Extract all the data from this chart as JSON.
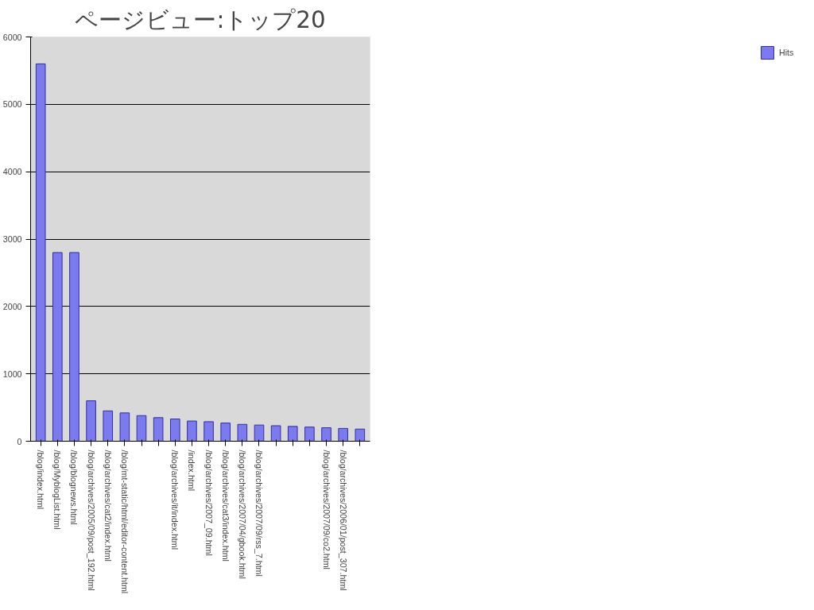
{
  "chart_data": {
    "type": "bar",
    "title": "ページビュー:トップ20",
    "categories": [
      "/blog/index.html",
      "/blog/MyblogList.html",
      "/blog/blognews.html",
      "/blog/archives/2005/09/post_192.html",
      "/blog/archives/cat2/index.html",
      "/blog/mt-static/html/editor-content.html",
      null,
      null,
      "/blog/archives/it/index.html",
      "/index.html",
      "/blog/archives/2007_09.html",
      "/blog/archives/cat3/index.html",
      "/blog/archives/2007/04/gbook.html",
      "/blog/archives/2007/09/rss_7.html",
      null,
      null,
      null,
      "/blog/archives/2007/09/co2.html",
      "/blog/archives/2006/01/post_307.html",
      null
    ],
    "series": [
      {
        "name": "Hits",
        "color": "#7b7bef",
        "values": [
          5600,
          2800,
          2800,
          600,
          450,
          420,
          380,
          350,
          330,
          300,
          290,
          270,
          250,
          240,
          230,
          220,
          210,
          200,
          190,
          180
        ]
      }
    ],
    "ylim": [
      0,
      6000
    ],
    "yticks": [
      0,
      1000,
      2000,
      3000,
      4000,
      5000,
      6000
    ],
    "grid": "y",
    "legend": "right"
  }
}
